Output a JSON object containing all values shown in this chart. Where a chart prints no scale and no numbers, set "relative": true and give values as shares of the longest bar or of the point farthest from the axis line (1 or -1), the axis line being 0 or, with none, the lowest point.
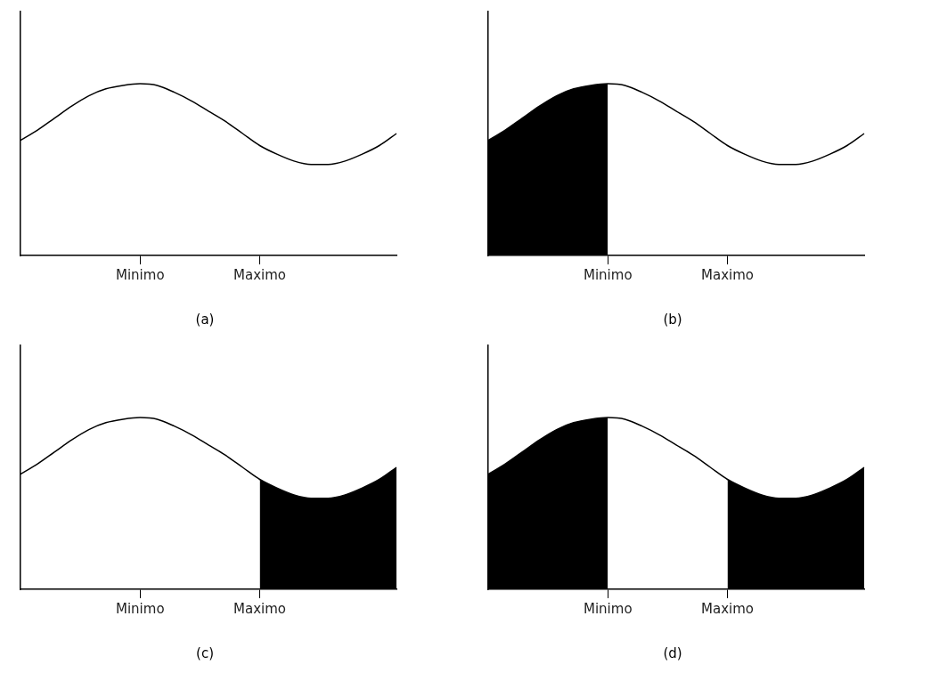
{
  "chart_data": [
    {
      "type": "line",
      "title": "(a)",
      "relative": true,
      "legend": false,
      "grid": false,
      "tick_labels": "x",
      "marker": "none",
      "categories": [
        null,
        null,
        null,
        null,
        null,
        null,
        null,
        "Minimo",
        null,
        null,
        null,
        null,
        null,
        null,
        "Maximo",
        null,
        null,
        null,
        null,
        null,
        null,
        null,
        null
      ],
      "series": [
        {
          "type": "line",
          "color": "#000000",
          "values": [
            0.67,
            0.73,
            0.8,
            0.87,
            0.93,
            0.97,
            0.99,
            1,
            0.99,
            0.95,
            0.9,
            0.84,
            0.78,
            0.71,
            0.64,
            0.59,
            0.55,
            0.53,
            0.53,
            0.55,
            0.59,
            0.64,
            0.71
          ]
        }
      ]
    },
    {
      "type": "line",
      "title": "(b)",
      "relative": true,
      "legend": false,
      "grid": false,
      "tick_labels": "x",
      "marker": "none",
      "categories": [
        null,
        null,
        null,
        null,
        null,
        null,
        null,
        "Minimo",
        null,
        null,
        null,
        null,
        null,
        null,
        "Maximo",
        null,
        null,
        null,
        null,
        null,
        null,
        null,
        null
      ],
      "series": [
        {
          "type": "line",
          "color": "#000000",
          "values": [
            0.67,
            0.73,
            0.8,
            0.87,
            0.93,
            0.97,
            0.99,
            1,
            0.99,
            0.95,
            0.9,
            0.84,
            0.78,
            0.71,
            0.64,
            0.59,
            0.55,
            0.53,
            0.53,
            0.55,
            0.59,
            0.64,
            0.71
          ]
        },
        {
          "type": "area",
          "color": "#000000",
          "values": [
            0.67,
            0.73,
            0.8,
            0.87,
            0.93,
            0.97,
            0.99,
            1,
            null,
            null,
            null,
            null,
            null,
            null,
            null,
            null,
            null,
            null,
            null,
            null,
            null,
            null,
            null
          ]
        }
      ]
    },
    {
      "type": "line",
      "title": "(c)",
      "relative": true,
      "legend": false,
      "grid": false,
      "tick_labels": "x",
      "marker": "none",
      "categories": [
        null,
        null,
        null,
        null,
        null,
        null,
        null,
        "Minimo",
        null,
        null,
        null,
        null,
        null,
        null,
        "Maximo",
        null,
        null,
        null,
        null,
        null,
        null,
        null,
        null
      ],
      "series": [
        {
          "type": "line",
          "color": "#000000",
          "values": [
            0.67,
            0.73,
            0.8,
            0.87,
            0.93,
            0.97,
            0.99,
            1,
            0.99,
            0.95,
            0.9,
            0.84,
            0.78,
            0.71,
            0.64,
            0.59,
            0.55,
            0.53,
            0.53,
            0.55,
            0.59,
            0.64,
            0.71
          ]
        },
        {
          "type": "area",
          "color": "#000000",
          "values": [
            null,
            null,
            null,
            null,
            null,
            null,
            null,
            null,
            null,
            null,
            null,
            null,
            null,
            null,
            0.64,
            0.59,
            0.55,
            0.53,
            0.53,
            0.55,
            0.59,
            0.64,
            0.71
          ]
        }
      ]
    },
    {
      "type": "line",
      "title": "(d)",
      "relative": true,
      "legend": false,
      "grid": false,
      "tick_labels": "x",
      "marker": "none",
      "categories": [
        null,
        null,
        null,
        null,
        null,
        null,
        null,
        "Minimo",
        null,
        null,
        null,
        null,
        null,
        null,
        "Maximo",
        null,
        null,
        null,
        null,
        null,
        null,
        null,
        null
      ],
      "series": [
        {
          "type": "line",
          "color": "#000000",
          "values": [
            0.67,
            0.73,
            0.8,
            0.87,
            0.93,
            0.97,
            0.99,
            1,
            0.99,
            0.95,
            0.9,
            0.84,
            0.78,
            0.71,
            0.64,
            0.59,
            0.55,
            0.53,
            0.53,
            0.55,
            0.59,
            0.64,
            0.71
          ]
        },
        {
          "type": "area",
          "color": "#000000",
          "values": [
            0.67,
            0.73,
            0.8,
            0.87,
            0.93,
            0.97,
            0.99,
            1,
            null,
            null,
            null,
            null,
            null,
            null,
            null,
            null,
            null,
            null,
            null,
            null,
            null,
            null,
            null
          ]
        },
        {
          "type": "area",
          "color": "#000000",
          "values": [
            null,
            null,
            null,
            null,
            null,
            null,
            null,
            null,
            null,
            null,
            null,
            null,
            null,
            null,
            0.64,
            0.59,
            0.55,
            0.53,
            0.53,
            0.55,
            0.59,
            0.64,
            0.71
          ]
        }
      ]
    }
  ]
}
